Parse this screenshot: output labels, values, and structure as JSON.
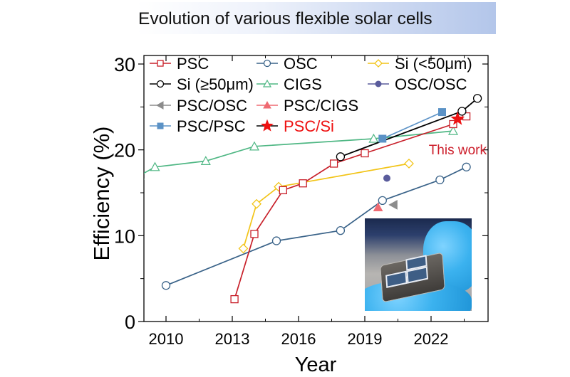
{
  "title": "Evolution of various flexible solar cells",
  "annotation": "This work",
  "inset": {
    "description": "photo of flexible solar cell held by blue-gloved fingers"
  },
  "colors": {
    "PSC": "#c8202a",
    "OSC": "#3a6389",
    "Si_thin": "#f2c418",
    "Si_thick": "#000000",
    "CIGS": "#4fb784",
    "OSC_OSC": "#5a5c9c",
    "PSC_OSC": "#8c8c8c",
    "PSC_CIGS": "#ef6a72",
    "PSC_PSC": "#5b92c6",
    "PSC_Si": "#ee1111",
    "annotation": "#cc1d2a"
  },
  "chart_data": {
    "type": "line",
    "title": "Evolution of various flexible solar cells",
    "xlabel": "Year",
    "ylabel": "Efficiency (%)",
    "xlim": [
      2009,
      2024.6
    ],
    "ylim": [
      0,
      30
    ],
    "xticks": [
      2010,
      2013,
      2016,
      2019,
      2022
    ],
    "xtick_labels": [
      "2010",
      "2013",
      "2016",
      "2019",
      "2022"
    ],
    "xminor": [
      2011.5,
      2014.5,
      2017.5,
      2020.5,
      2023.5
    ],
    "yticks": [
      0,
      10,
      20,
      30
    ],
    "ytick_labels": [
      "0",
      "10",
      "20",
      "30"
    ],
    "yminor": [
      5,
      15,
      25
    ],
    "grid": false,
    "legend": {
      "placement": "top-left",
      "entries": [
        {
          "name": "PSC",
          "label": "PSC"
        },
        {
          "name": "OSC",
          "label": "OSC"
        },
        {
          "name": "Si_thin",
          "label": "Si (<50μm)"
        },
        {
          "name": "Si_thick",
          "label": "Si (≥50μm)"
        },
        {
          "name": "CIGS",
          "label": "CIGS"
        },
        {
          "name": "OSC_OSC",
          "label": "OSC/OSC"
        },
        {
          "name": "PSC_OSC",
          "label": "PSC/OSC"
        },
        {
          "name": "PSC_CIGS",
          "label": "PSC/CIGS"
        },
        {
          "name": "PSC_PSC",
          "label": "PSC/PSC"
        },
        {
          "name": "PSC_Si",
          "label": "PSC/Si"
        }
      ]
    },
    "series": [
      {
        "name": "PSC",
        "marker": "square-open",
        "x": [
          2013.1,
          2014.0,
          2015.3,
          2016.2,
          2017.6,
          2019.0,
          2023.0,
          2023.6
        ],
        "y": [
          2.6,
          10.2,
          15.3,
          16.1,
          18.4,
          19.6,
          23.0,
          23.9
        ]
      },
      {
        "name": "OSC",
        "marker": "circle-open",
        "x": [
          2010.0,
          2015.0,
          2017.9,
          2019.8,
          2022.4,
          2023.6
        ],
        "y": [
          4.2,
          9.4,
          10.6,
          14.1,
          16.5,
          18.0
        ]
      },
      {
        "name": "Si_thin",
        "marker": "diamond-open",
        "x": [
          2013.5,
          2014.1,
          2015.1,
          2021.0
        ],
        "y": [
          8.5,
          13.7,
          15.7,
          18.4
        ]
      },
      {
        "name": "Si_thick",
        "marker": "circle-open",
        "x": [
          2017.9,
          2023.4,
          2024.1
        ],
        "y": [
          19.2,
          24.5,
          26.0
        ]
      },
      {
        "name": "CIGS",
        "marker": "triangle-open",
        "x": [
          2008.8,
          2009.5,
          2011.8,
          2014.0,
          2019.4,
          2023.0
        ],
        "y": [
          17.0,
          18.0,
          18.7,
          20.4,
          21.3,
          22.2
        ]
      },
      {
        "name": "OSC_OSC",
        "marker": "circle-filled",
        "x": [
          2020.0
        ],
        "y": [
          16.7
        ]
      },
      {
        "name": "PSC_OSC",
        "marker": "triangle-left-filled",
        "x": [
          2020.3
        ],
        "y": [
          13.6
        ]
      },
      {
        "name": "PSC_CIGS",
        "marker": "triangle-filled",
        "x": [
          2019.6
        ],
        "y": [
          13.3
        ]
      },
      {
        "name": "PSC_PSC",
        "marker": "square-filled",
        "x": [
          2019.8,
          2022.5
        ],
        "y": [
          21.3,
          24.4
        ]
      },
      {
        "name": "PSC_Si",
        "marker": "star-filled",
        "x": [
          2023.2
        ],
        "y": [
          23.6
        ]
      }
    ]
  }
}
